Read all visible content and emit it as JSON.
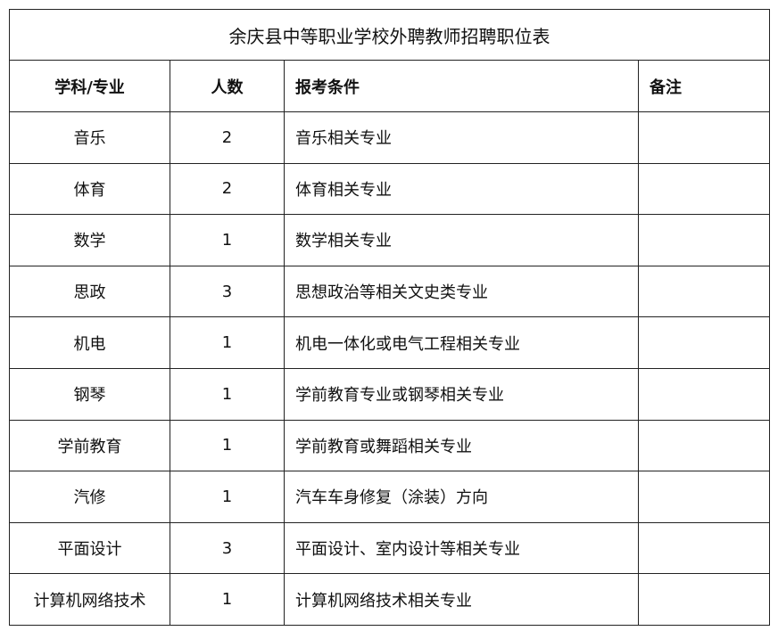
{
  "table": {
    "title": "余庆县中等职业学校外聘教师招聘职位表",
    "header": [
      "学科/专业",
      "人数",
      "报考条件",
      "备注"
    ],
    "rows": [
      [
        "音乐",
        2,
        "音乐相关专业"
      ],
      [
        "体育",
        2,
        "体育相关专业"
      ],
      [
        "数学",
        1,
        "数学相关专业"
      ],
      [
        "思政",
        3,
        "思想政治等相关文史类专业"
      ],
      [
        "机电",
        1,
        "机电一体化或电气工程相关专业"
      ],
      [
        "钢琴",
        1,
        "学前教育专业或钢琴相关专业"
      ],
      [
        "学前教育",
        1,
        "学前教育或舞蹈相关专业"
      ],
      [
        "汽修",
        1,
        "汽车车身修复（涂装）方向"
      ],
      [
        "平面设计",
        3,
        "平面设计、室内设计等相关专业"
      ],
      [
        "计算机网络技术",
        1,
        "计算机网络技术相关专业"
      ]
    ]
  }
}
